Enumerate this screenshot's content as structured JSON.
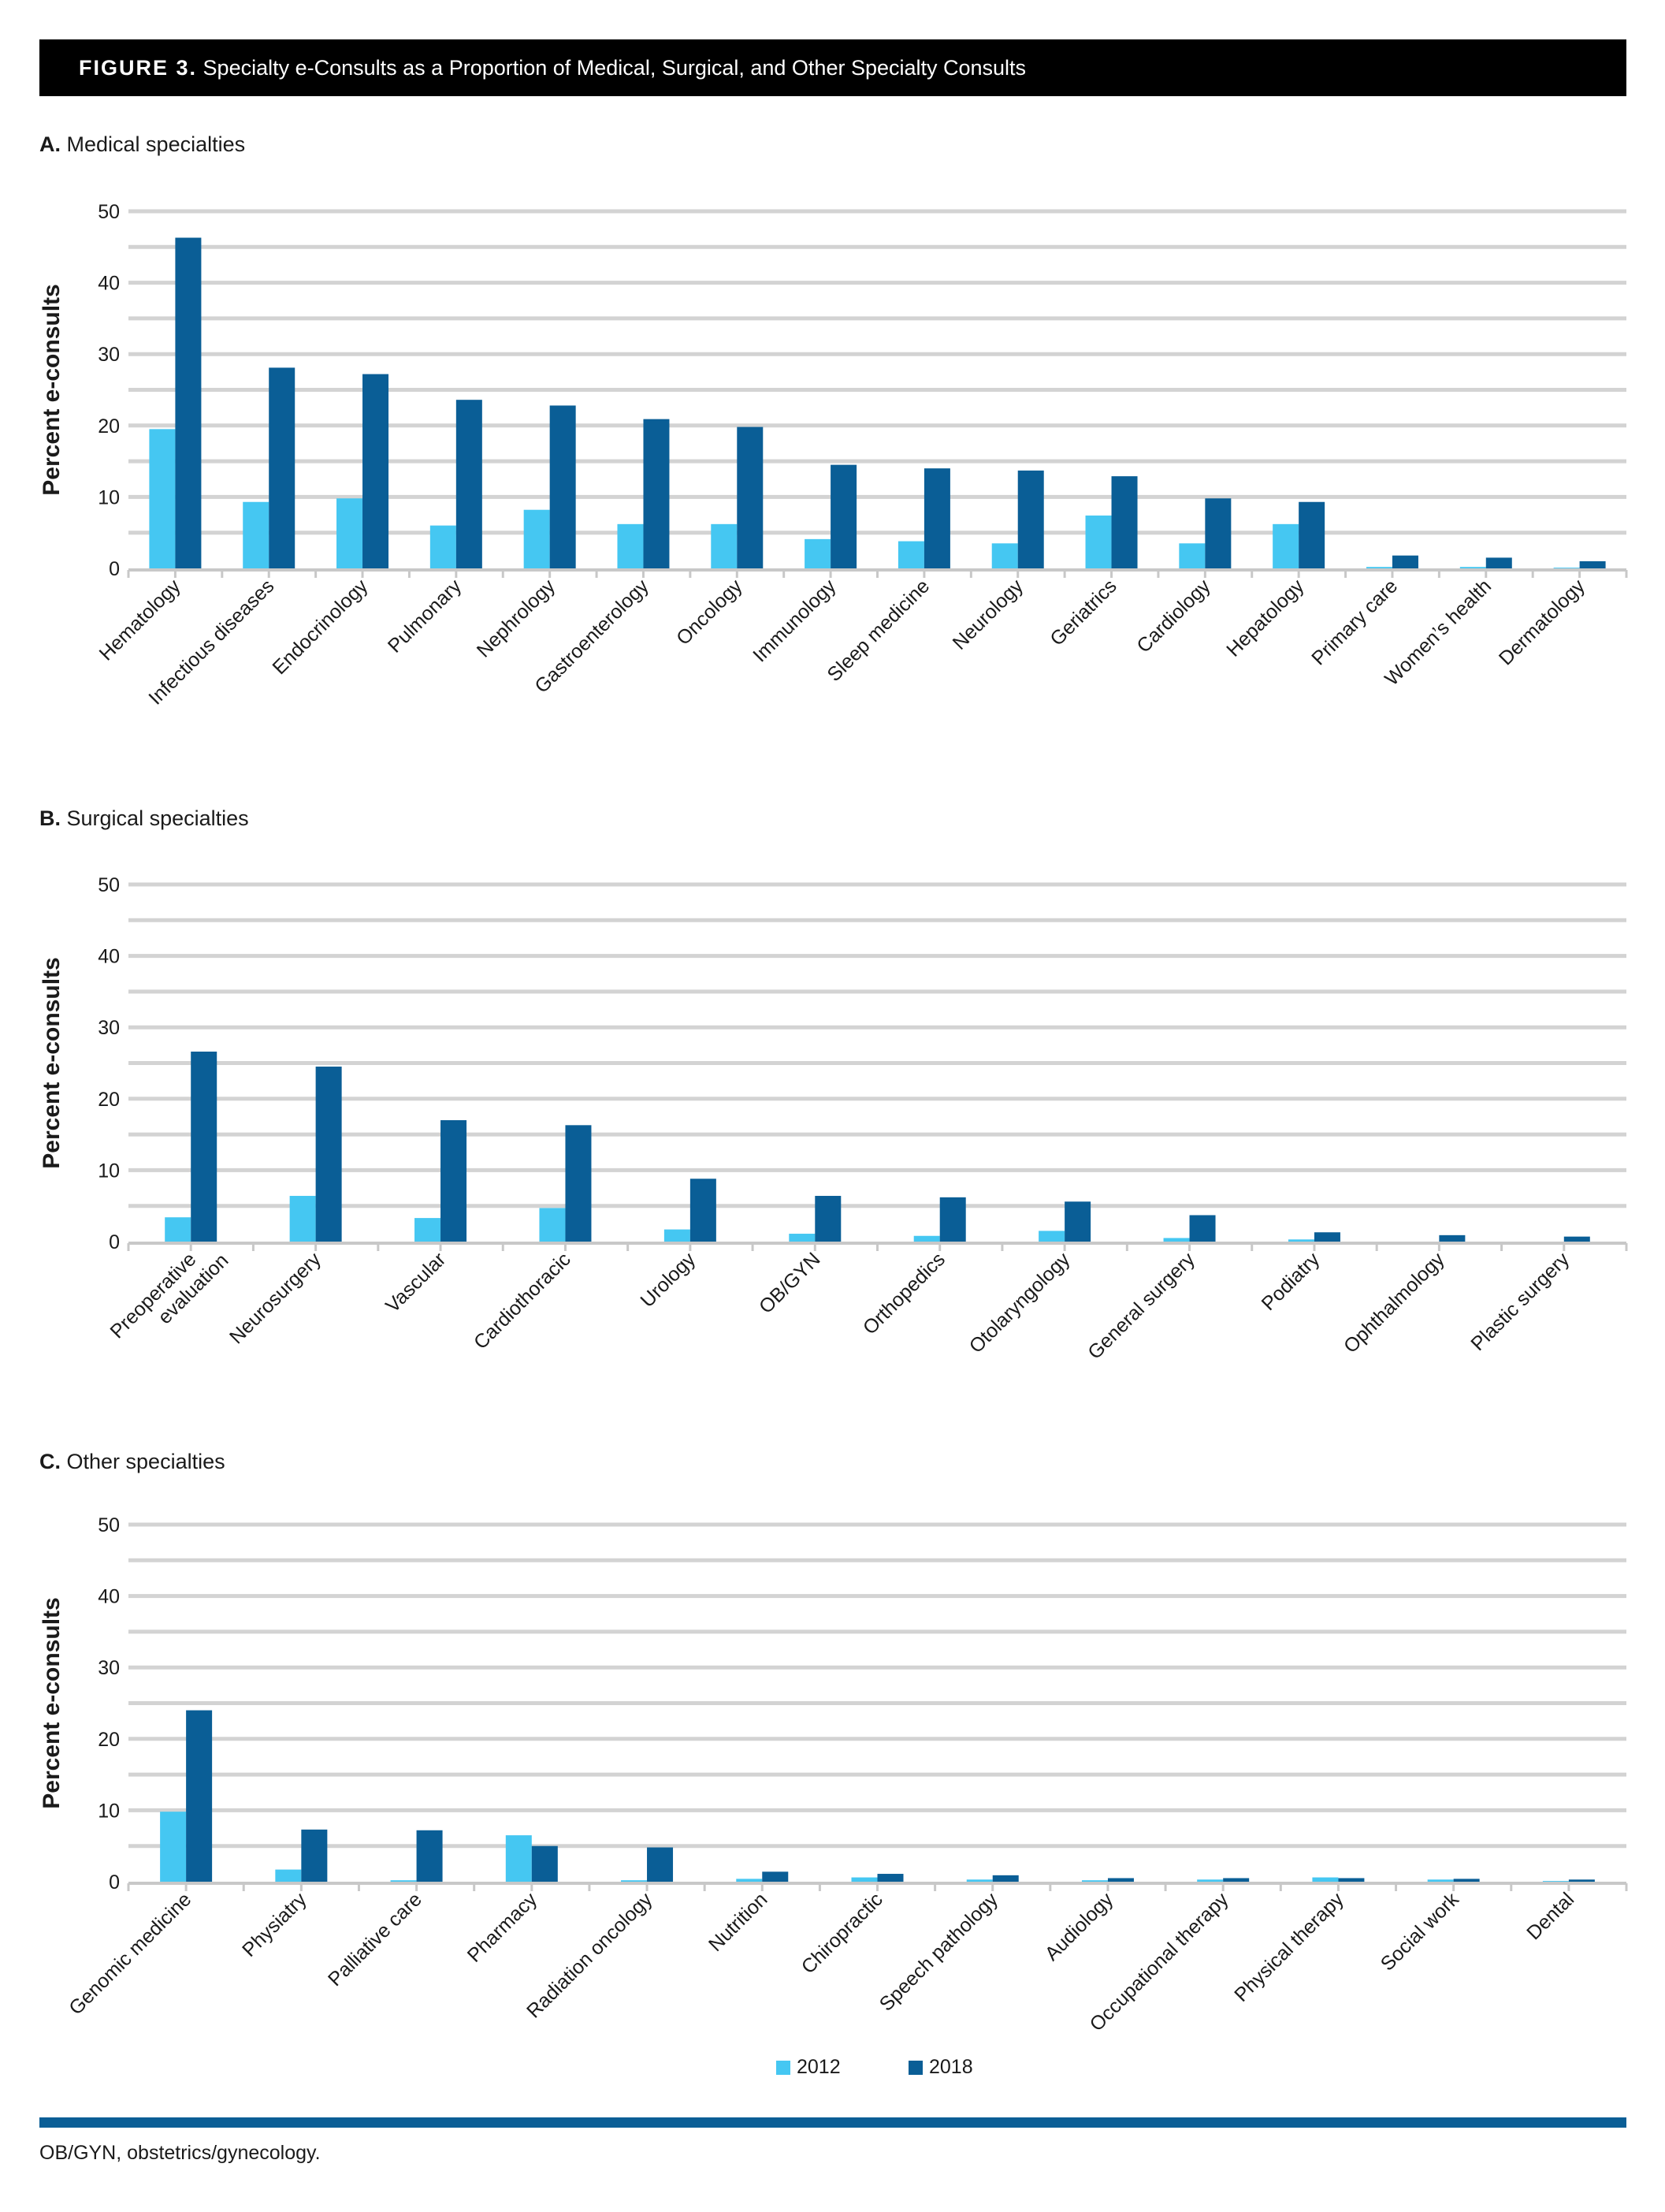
{
  "figure": {
    "label": "FIGURE 3.",
    "title": "Specialty e-Consults as a Proportion of Medical, Surgical, and Other Specialty Consults"
  },
  "legend": {
    "items": [
      "2012",
      "2018"
    ]
  },
  "colors": {
    "s2012": "#45c7f2",
    "s2018": "#0a5e96",
    "grid": "#d3d3d3",
    "axis": "#c8c8c8"
  },
  "footnote": "OB/GYN, obstetrics/gynecology.",
  "chart_data": [
    {
      "type": "bar",
      "panel_letter": "A.",
      "panel_name": "Medical specialties",
      "ylabel": "Percent e-consults",
      "ylim": [
        0,
        50
      ],
      "yticks": [
        0,
        10,
        20,
        30,
        40,
        50
      ],
      "categories": [
        "Hematology",
        "Infectious diseases",
        "Endocrinology",
        "Pulmonary",
        "Nephrology",
        "Gastroenterology",
        "Oncology",
        "Immunology",
        "Sleep medicine",
        "Neurology",
        "Geriatrics",
        "Cardiology",
        "Hepatology",
        "Primary care",
        "Women’s health",
        "Dermatology"
      ],
      "series": [
        {
          "name": "2012",
          "values": [
            19.5,
            9.3,
            9.8,
            6.0,
            8.2,
            6.2,
            6.2,
            4.1,
            3.8,
            3.5,
            7.4,
            3.5,
            6.2,
            0.2,
            0.2,
            0.1
          ]
        },
        {
          "name": "2018",
          "values": [
            46.3,
            28.1,
            27.2,
            23.6,
            22.8,
            20.9,
            19.8,
            14.5,
            14.0,
            13.7,
            12.9,
            9.8,
            9.3,
            1.8,
            1.5,
            1.0
          ]
        }
      ]
    },
    {
      "type": "bar",
      "panel_letter": "B.",
      "panel_name": "Surgical specialties",
      "ylabel": "Percent e-consults",
      "ylim": [
        0,
        50
      ],
      "yticks": [
        0,
        10,
        20,
        30,
        40,
        50
      ],
      "categories": [
        "Preoperative evaluation",
        "Neurosurgery",
        "Vascular",
        "Cardiothoracic",
        "Urology",
        "OB/GYN",
        "Orthopedics",
        "Otolaryngology",
        "General surgery",
        "Podiatry",
        "Ophthalmology",
        "Plastic surgery"
      ],
      "series": [
        {
          "name": "2012",
          "values": [
            3.4,
            6.4,
            3.3,
            4.7,
            1.7,
            1.1,
            0.8,
            1.5,
            0.5,
            0.3,
            0.0,
            0.0
          ]
        },
        {
          "name": "2018",
          "values": [
            26.6,
            24.5,
            17.0,
            16.3,
            8.8,
            6.4,
            6.2,
            5.6,
            3.7,
            1.3,
            0.9,
            0.7
          ]
        }
      ]
    },
    {
      "type": "bar",
      "panel_letter": "C.",
      "panel_name": "Other specialties",
      "ylabel": "Percent e-consults",
      "ylim": [
        0,
        50
      ],
      "yticks": [
        0,
        10,
        20,
        30,
        40,
        50
      ],
      "categories": [
        "Genomic medicine",
        "Physiatry",
        "Palliative care",
        "Pharmacy",
        "Radiation oncology",
        "Nutrition",
        "Chiropractic",
        "Speech pathology",
        "Audiology",
        "Occupational therapy",
        "Physical therapy",
        "Social work",
        "Dental"
      ],
      "series": [
        {
          "name": "2012",
          "values": [
            9.8,
            1.7,
            0.2,
            6.5,
            0.2,
            0.4,
            0.6,
            0.3,
            0.2,
            0.3,
            0.6,
            0.3,
            0.1
          ]
        },
        {
          "name": "2018",
          "values": [
            24.0,
            7.3,
            7.2,
            5.0,
            4.8,
            1.4,
            1.1,
            0.9,
            0.5,
            0.5,
            0.5,
            0.4,
            0.3
          ]
        }
      ]
    }
  ]
}
